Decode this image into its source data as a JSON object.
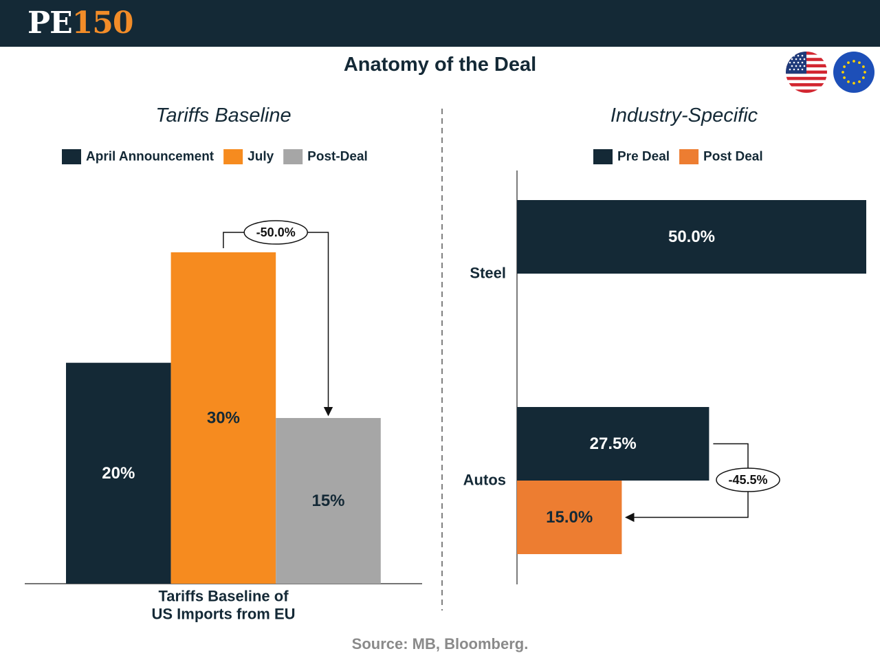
{
  "header": {
    "logo_pe": "PE",
    "logo_num": "150",
    "title": "Anatomy of the Deal"
  },
  "flags": [
    {
      "name": "US flag",
      "icon": "us-flag-icon"
    },
    {
      "name": "EU flag",
      "icon": "eu-flag-icon"
    }
  ],
  "colors": {
    "navy": "#142936",
    "orange_july": "#f68b1f",
    "orange_post": "#ed7d31",
    "gray": "#a6a6a6"
  },
  "chart_data": [
    {
      "type": "bar",
      "title": "Tariffs Baseline",
      "xlabel": "Tariffs Baseline of\nUS Imports from EU",
      "categories": [
        "Tariffs Baseline of US Imports from EU"
      ],
      "series": [
        {
          "name": "April Announcement",
          "values": [
            20
          ],
          "label": "20%",
          "color": "#142936",
          "label_color": "#ffffff"
        },
        {
          "name": "July",
          "values": [
            30
          ],
          "label": "30%",
          "color": "#f68b1f",
          "label_color": "#142936"
        },
        {
          "name": "Post-Deal",
          "values": [
            15
          ],
          "label": "15%",
          "color": "#a6a6a6",
          "label_color": "#142936"
        }
      ],
      "ylim": [
        0,
        30
      ],
      "annotation": "-50.0%",
      "legend_position": "top"
    },
    {
      "type": "bar",
      "orientation": "horizontal",
      "title": "Industry-Specific",
      "categories": [
        "Steel",
        "Autos"
      ],
      "series": [
        {
          "name": "Pre Deal",
          "values": [
            50.0,
            27.5
          ],
          "labels": [
            "50.0%",
            "27.5%"
          ],
          "color": "#142936",
          "label_color": "#ffffff"
        },
        {
          "name": "Post Deal",
          "values": [
            null,
            15.0
          ],
          "labels": [
            "",
            "15.0%"
          ],
          "color": "#ed7d31",
          "label_color": "#142936"
        }
      ],
      "xlim": [
        0,
        50
      ],
      "annotation": "-45.5%",
      "legend_position": "top"
    }
  ],
  "footer": {
    "source": "Source: MB, Bloomberg."
  }
}
